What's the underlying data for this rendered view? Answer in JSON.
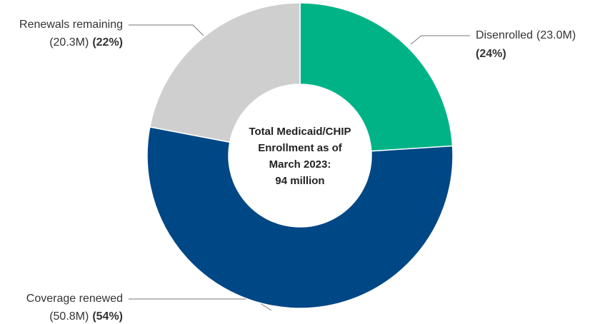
{
  "chart_data": {
    "type": "pie",
    "categories": [
      "Disenrolled",
      "Coverage renewed",
      "Renewals remaining"
    ],
    "values": [
      24,
      54,
      22
    ],
    "value_labels": [
      "(24%)",
      "(54%)",
      "(22%)"
    ],
    "amount_labels": [
      "(23.0M)",
      "(50.8M)",
      "(20.3M)"
    ],
    "colors": [
      "#00b386",
      "#004785",
      "#cfcfcf"
    ],
    "center_text": [
      "Total Medicaid/CHIP",
      "Enrollment as of",
      "March 2023:",
      "94 million"
    ]
  }
}
